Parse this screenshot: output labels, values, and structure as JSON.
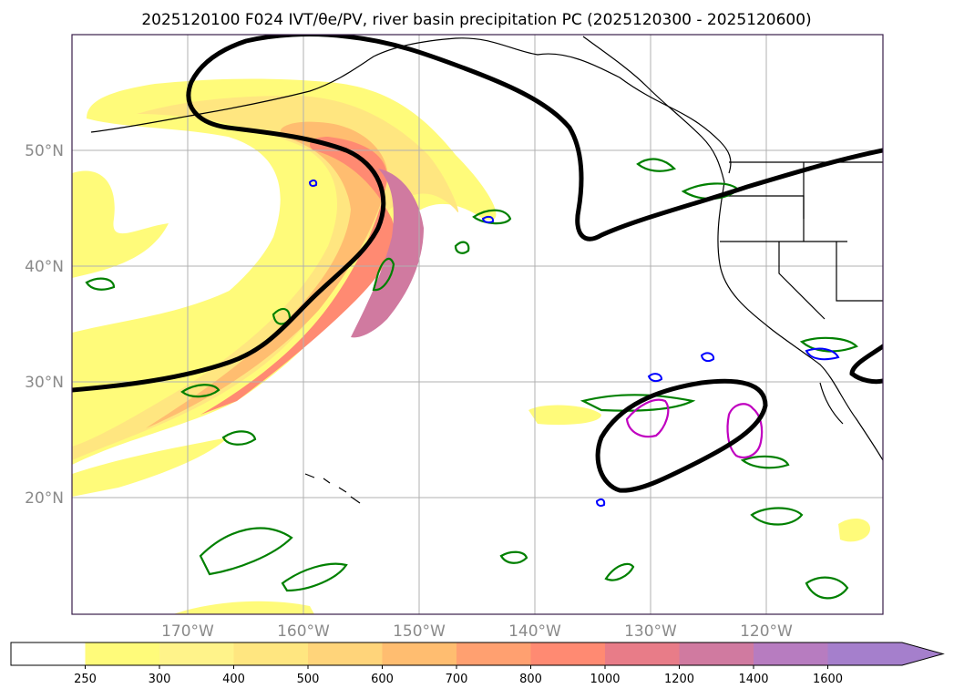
{
  "title": "2025120100 F024 IVT/θe/PV, river basin precipitation PC (2025120300 - 2025120600)",
  "map": {
    "lat_labels": [
      "50°N",
      "40°N",
      "30°N",
      "20°N"
    ],
    "lon_labels": [
      "170°W",
      "160°W",
      "150°W",
      "140°W",
      "130°W",
      "120°W"
    ]
  },
  "colorbar": {
    "ticks": [
      "250",
      "300",
      "400",
      "500",
      "600",
      "700",
      "800",
      "1000",
      "1200",
      "1400",
      "1600"
    ],
    "colors": [
      "#ffffff",
      "#fffb7a",
      "#fff38a",
      "#ffe680",
      "#ffd47a",
      "#ffbd70",
      "#ffa070",
      "#ff8a72",
      "#e87c88",
      "#d07aa0",
      "#b77cc0",
      "#a57fcc"
    ],
    "extend": "max"
  },
  "colors": {
    "theta_contour": "#000000",
    "pv_green": "#008000",
    "pv_blue": "#0000ff",
    "precip_magenta": "#c000c0",
    "coastline": "#000000",
    "grid": "#b0b0b0"
  }
}
